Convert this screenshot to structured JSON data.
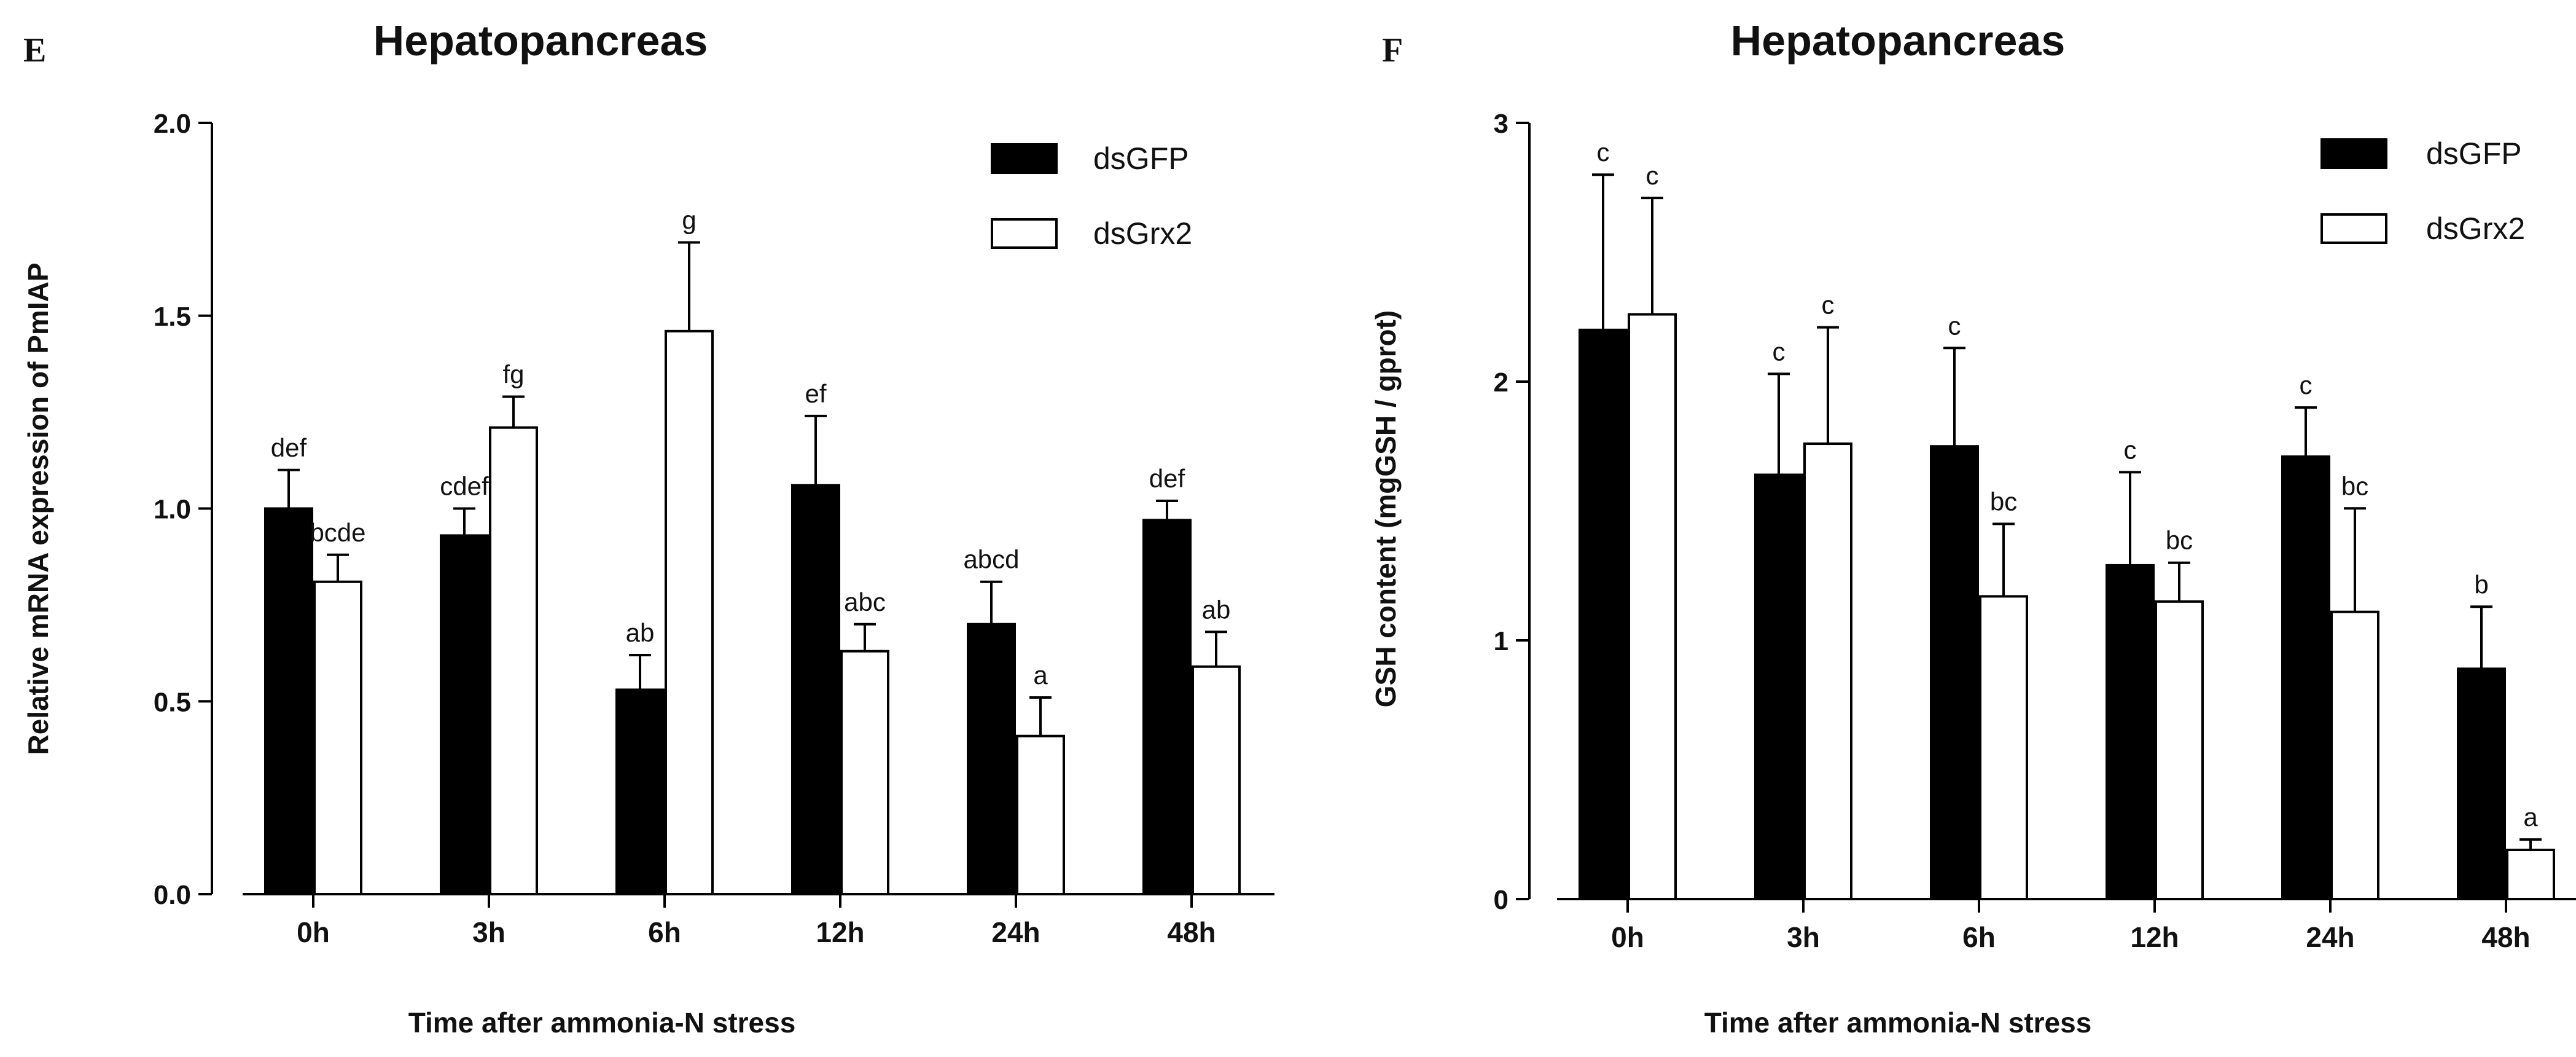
{
  "chart_data": [
    {
      "type": "bar",
      "panel_label": "E",
      "title": "Hepatopancreas",
      "xlabel": "Time after ammonia-N stress",
      "ylabel": "Relative mRNA expression of PmIAP",
      "ylim": [
        0,
        2.0
      ],
      "yticks": [
        0.0,
        0.5,
        1.0,
        1.5,
        2.0
      ],
      "ytick_labels": [
        "0.0",
        "0.5",
        "1.0",
        "1.5",
        "2.0"
      ],
      "categories": [
        "0h",
        "3h",
        "6h",
        "12h",
        "24h",
        "48h"
      ],
      "legend_position": "top-right",
      "series": [
        {
          "name": "dsGFP",
          "fill": "#000000",
          "values": [
            1.0,
            0.93,
            0.53,
            1.06,
            0.7,
            0.97
          ],
          "errors": [
            0.1,
            0.07,
            0.09,
            0.18,
            0.11,
            0.05
          ],
          "labels": [
            "def",
            "cdef",
            "ab",
            "ef",
            "abcd",
            "def"
          ]
        },
        {
          "name": "dsGrx2",
          "fill": "#ffffff",
          "values": [
            0.81,
            1.21,
            1.46,
            0.63,
            0.41,
            0.59
          ],
          "errors": [
            0.07,
            0.08,
            0.23,
            0.07,
            0.1,
            0.09
          ],
          "labels": [
            "bcde",
            "fg",
            "g",
            "abc",
            "a",
            "ab"
          ]
        }
      ]
    },
    {
      "type": "bar",
      "panel_label": "F",
      "title": "Hepatopancreas",
      "xlabel": "Time after ammonia-N stress",
      "ylabel": "GSH content (mgGSH / gprot)",
      "ylim": [
        0,
        3
      ],
      "yticks": [
        0,
        1,
        2,
        3
      ],
      "ytick_labels": [
        "0",
        "1",
        "2",
        "3"
      ],
      "categories": [
        "0h",
        "3h",
        "6h",
        "12h",
        "24h",
        "48h"
      ],
      "legend_position": "top-right",
      "series": [
        {
          "name": "dsGFP",
          "fill": "#000000",
          "values": [
            2.2,
            1.64,
            1.75,
            1.29,
            1.71,
            0.89
          ],
          "errors": [
            0.6,
            0.39,
            0.38,
            0.36,
            0.19,
            0.24
          ],
          "labels": [
            "c",
            "c",
            "c",
            "c",
            "c",
            "b"
          ]
        },
        {
          "name": "dsGrx2",
          "fill": "#ffffff",
          "values": [
            2.26,
            1.76,
            1.17,
            1.15,
            1.11,
            0.19
          ],
          "errors": [
            0.45,
            0.45,
            0.28,
            0.15,
            0.4,
            0.04
          ],
          "labels": [
            "c",
            "c",
            "bc",
            "bc",
            "bc",
            "a"
          ]
        }
      ]
    }
  ]
}
